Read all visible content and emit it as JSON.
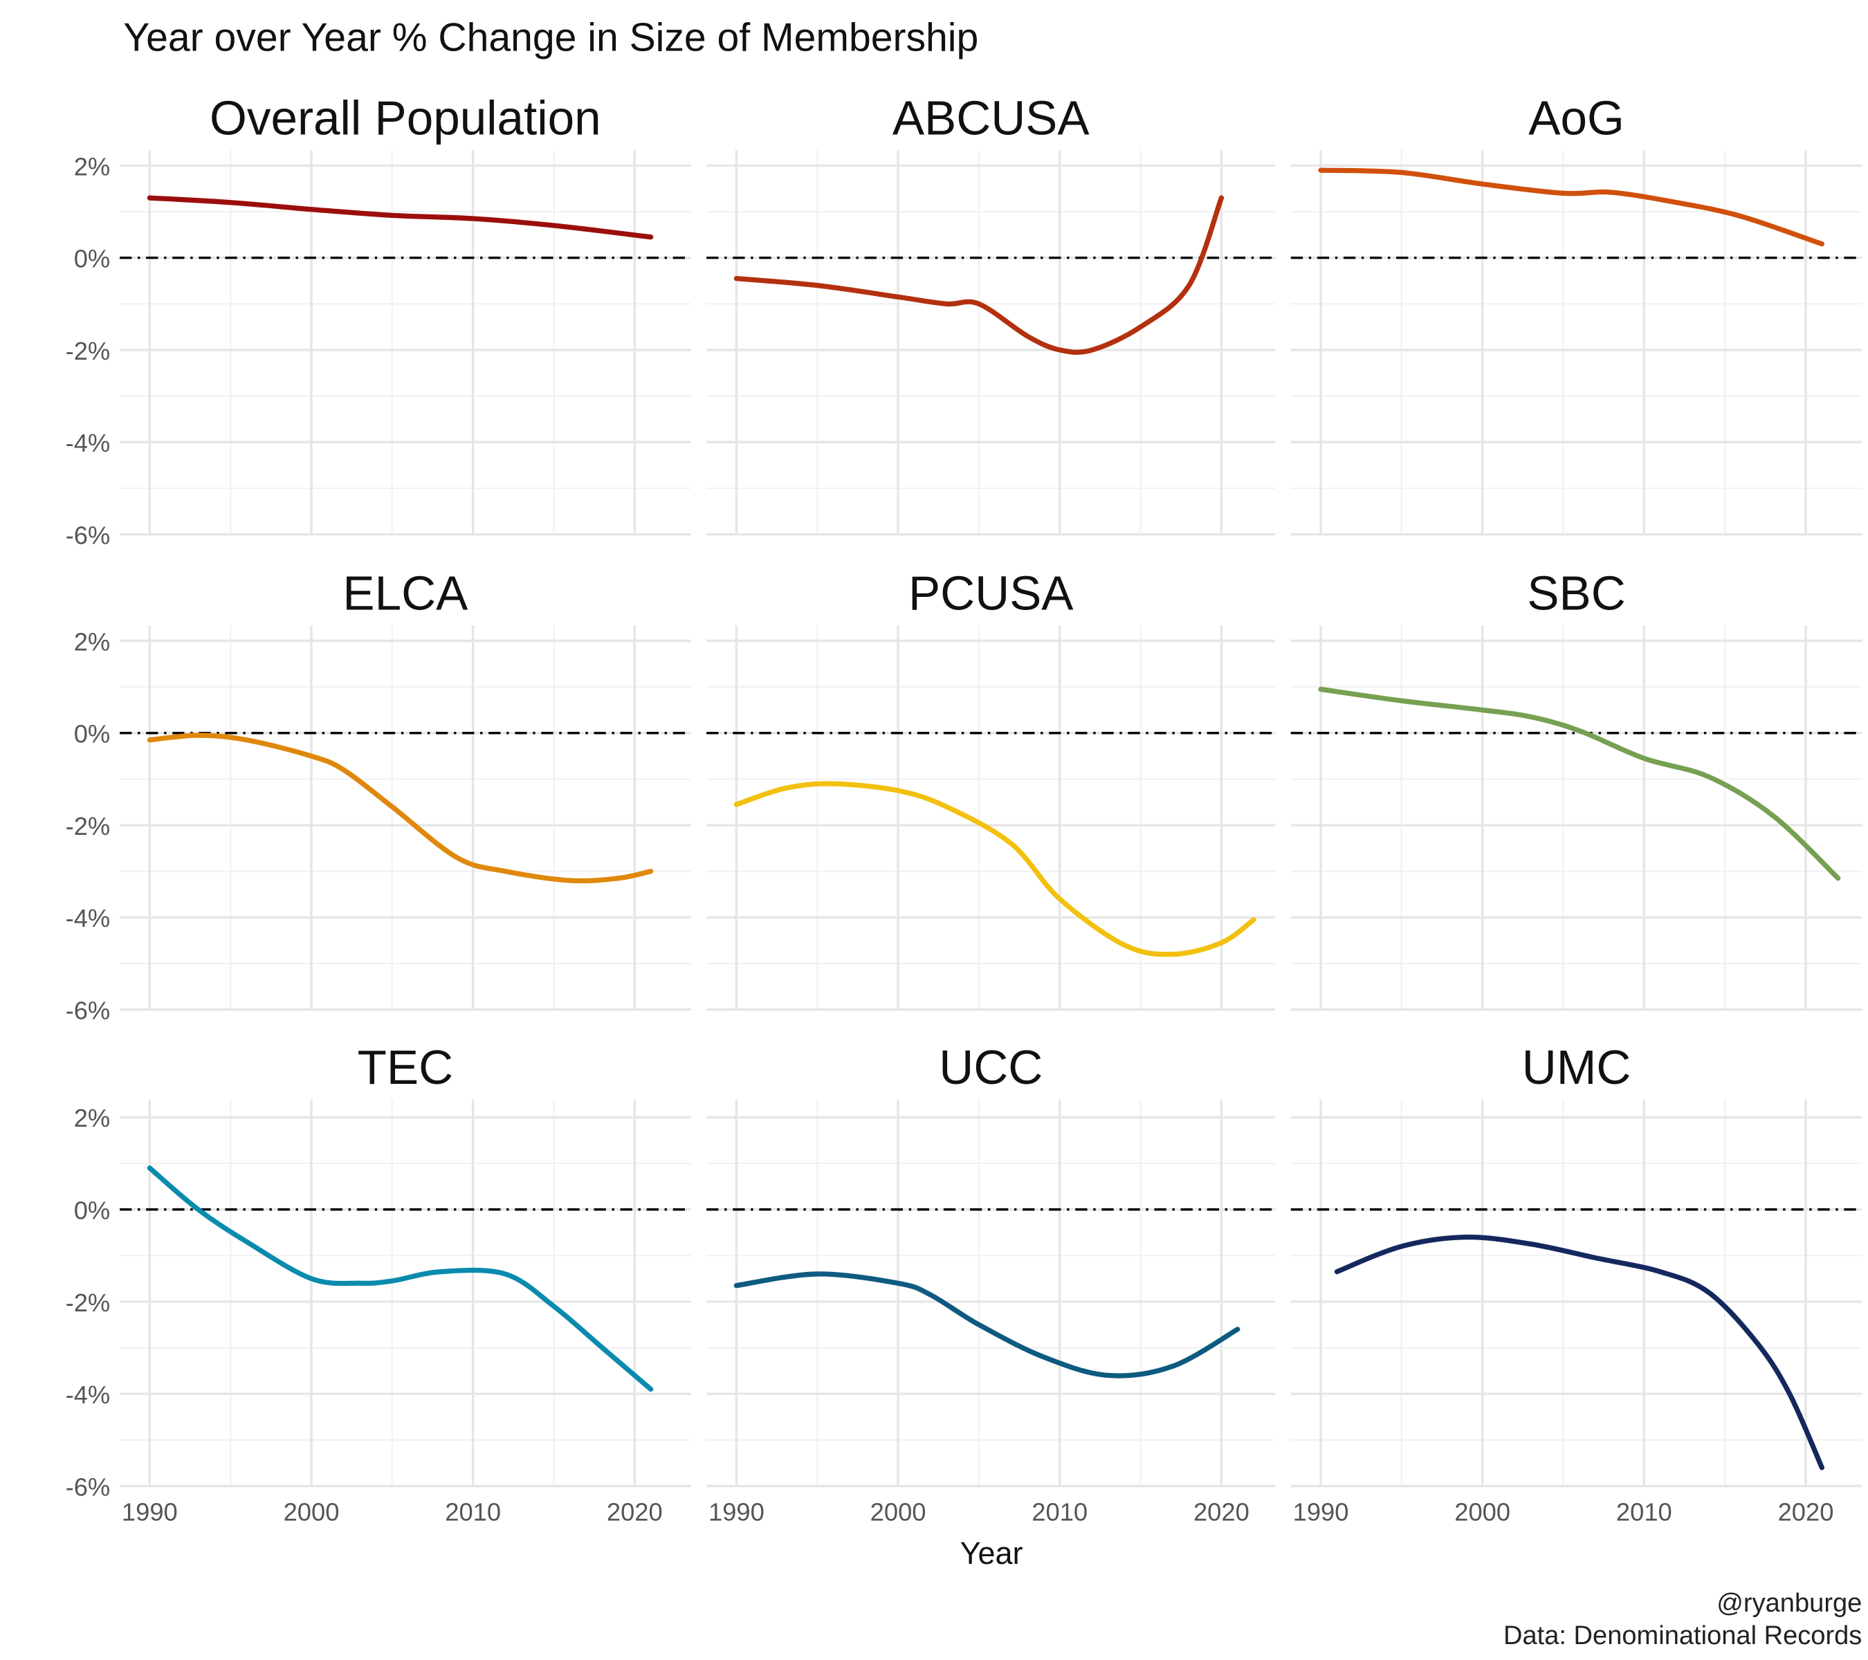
{
  "chart_data": {
    "type": "line",
    "title": "Year over Year % Change in Size of Membership",
    "xlabel": "Year",
    "ylabel": "",
    "xlim": [
      1988,
      2024
    ],
    "ylim": [
      -6,
      2.2
    ],
    "x_ticks": [
      1990,
      2000,
      2010,
      2020
    ],
    "x_tick_labels": [
      "1990",
      "2000",
      "2010",
      "2020"
    ],
    "y_ticks": [
      2,
      0,
      -2,
      -4,
      -6
    ],
    "y_tick_labels": [
      "2%",
      "0%",
      "-2%",
      "-4%",
      "-6%"
    ],
    "grid": true,
    "reference_line": {
      "y": 0,
      "style": "dash-dot",
      "color": "#000000"
    },
    "facets": [
      {
        "name": "Overall Population",
        "color": "#9B0E0B",
        "x": [
          1990,
          1995,
          2000,
          2005,
          2010,
          2015,
          2021
        ],
        "y": [
          1.3,
          1.2,
          1.05,
          0.92,
          0.85,
          0.7,
          0.45
        ]
      },
      {
        "name": "ABCUSA",
        "color": "#B4300E",
        "x": [
          1990,
          1995,
          2000,
          2003,
          2005,
          2008,
          2010,
          2012,
          2015,
          2018,
          2020
        ],
        "y": [
          -0.45,
          -0.6,
          -0.85,
          -1.0,
          -1.0,
          -1.7,
          -2.0,
          -2.0,
          -1.5,
          -0.6,
          1.3
        ]
      },
      {
        "name": "AoG",
        "color": "#D0500C",
        "x": [
          1990,
          1995,
          2000,
          2005,
          2008,
          2012,
          2016,
          2021
        ],
        "y": [
          1.9,
          1.85,
          1.6,
          1.4,
          1.42,
          1.2,
          0.9,
          0.3
        ]
      },
      {
        "name": "ELCA",
        "color": "#E0880B",
        "x": [
          1990,
          1993,
          1996,
          2000,
          2002,
          2005,
          2009,
          2012,
          2016,
          2019,
          2021
        ],
        "y": [
          -0.15,
          -0.05,
          -0.15,
          -0.5,
          -0.8,
          -1.6,
          -2.7,
          -3.0,
          -3.2,
          -3.15,
          -3.0
        ]
      },
      {
        "name": "PCUSA",
        "color": "#F2C00E",
        "x": [
          1990,
          1993,
          1996,
          2000,
          2003,
          2007,
          2010,
          2014,
          2017,
          2020,
          2022
        ],
        "y": [
          -1.55,
          -1.2,
          -1.1,
          -1.25,
          -1.6,
          -2.4,
          -3.6,
          -4.6,
          -4.8,
          -4.55,
          -4.05
        ]
      },
      {
        "name": "SBC",
        "color": "#76A052",
        "x": [
          1990,
          1995,
          2000,
          2003,
          2006,
          2010,
          2014,
          2018,
          2022
        ],
        "y": [
          0.95,
          0.7,
          0.5,
          0.35,
          0.05,
          -0.55,
          -0.95,
          -1.8,
          -3.15
        ]
      },
      {
        "name": "TEC",
        "color": "#0A8BAE",
        "x": [
          1990,
          1993,
          1996,
          2000,
          2003,
          2005,
          2008,
          2012,
          2015,
          2018,
          2021
        ],
        "y": [
          0.9,
          0.0,
          -0.7,
          -1.5,
          -1.6,
          -1.55,
          -1.35,
          -1.4,
          -2.1,
          -3.0,
          -3.9
        ]
      },
      {
        "name": "UCC",
        "color": "#0E5A80",
        "x": [
          1990,
          1995,
          2000,
          2002,
          2005,
          2009,
          2013,
          2017,
          2021
        ],
        "y": [
          -1.65,
          -1.4,
          -1.6,
          -1.85,
          -2.5,
          -3.2,
          -3.6,
          -3.4,
          -2.6
        ]
      },
      {
        "name": "UMC",
        "color": "#15285E",
        "x": [
          1991,
          1995,
          1999,
          2003,
          2007,
          2011,
          2014,
          2017,
          2019,
          2021
        ],
        "y": [
          -1.35,
          -0.8,
          -0.6,
          -0.75,
          -1.05,
          -1.35,
          -1.8,
          -2.9,
          -4.0,
          -5.6
        ]
      }
    ],
    "caption": [
      "@ryanburge",
      "Data: Denominational Records"
    ]
  }
}
